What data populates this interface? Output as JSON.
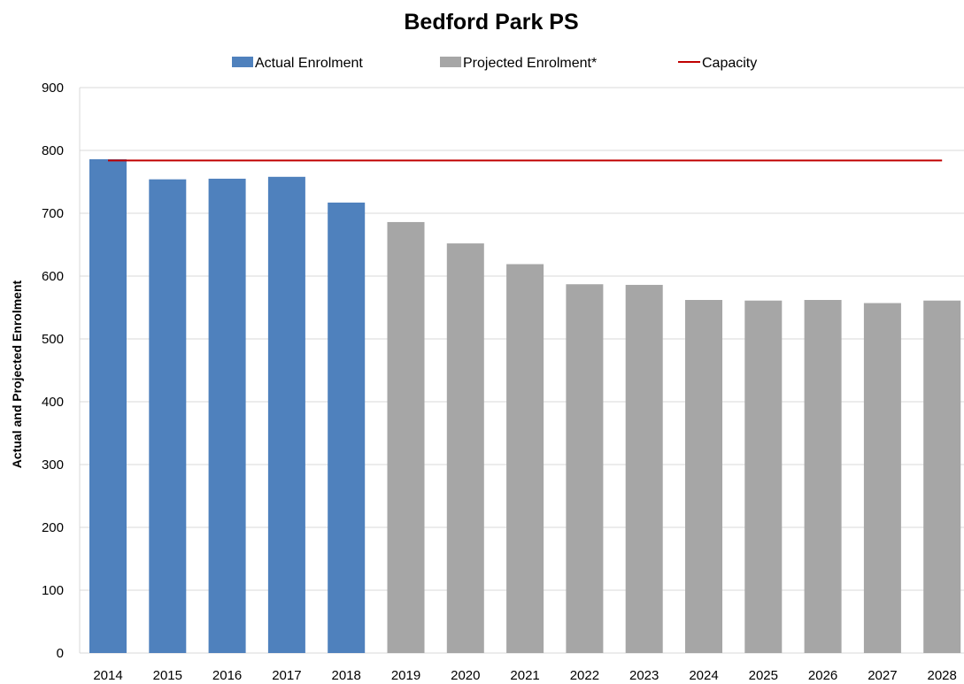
{
  "chart_data": {
    "type": "bar",
    "title": "Bedford Park PS",
    "xlabel": "",
    "ylabel": "Actual and Projected Enrolment",
    "ylim": [
      0,
      900
    ],
    "yticks": [
      0,
      100,
      200,
      300,
      400,
      500,
      600,
      700,
      800,
      900
    ],
    "grid": true,
    "legend_position": "top",
    "categories": [
      "2014",
      "2015",
      "2016",
      "2017",
      "2018",
      "2019",
      "2020",
      "2021",
      "2022",
      "2023",
      "2024",
      "2025",
      "2026",
      "2027",
      "2028"
    ],
    "series": [
      {
        "name": "Actual Enrolment",
        "kind": "bar",
        "color": "#4f81bd",
        "values": [
          786,
          754,
          755,
          758,
          717,
          null,
          null,
          null,
          null,
          null,
          null,
          null,
          null,
          null,
          null
        ]
      },
      {
        "name": "Projected Enrolment*",
        "kind": "bar",
        "color": "#a6a6a6",
        "values": [
          null,
          null,
          null,
          null,
          null,
          686,
          652,
          619,
          587,
          586,
          562,
          561,
          562,
          557,
          561
        ]
      },
      {
        "name": "Capacity",
        "kind": "line",
        "color": "#c00000",
        "value": 784
      }
    ]
  }
}
